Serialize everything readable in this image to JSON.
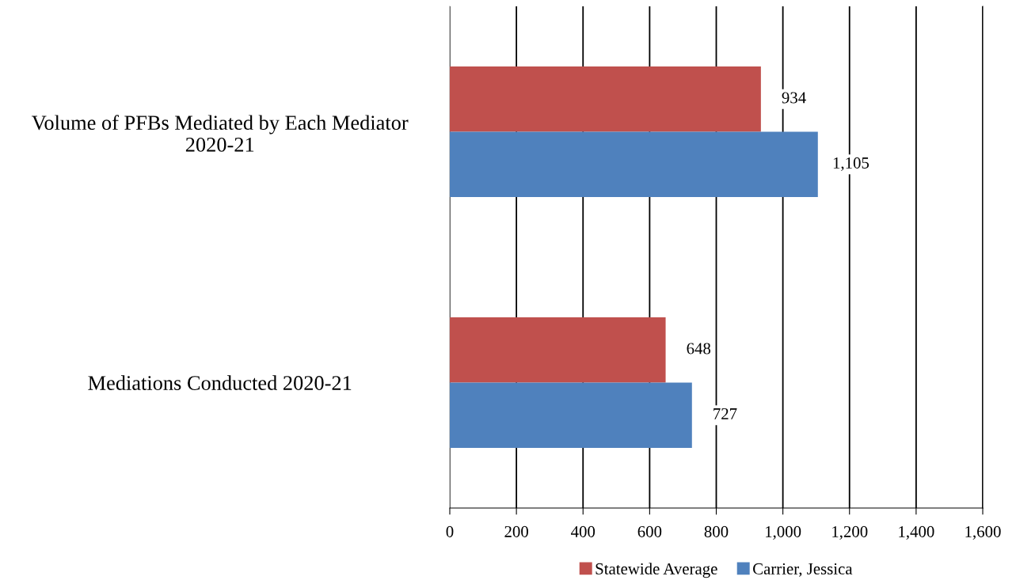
{
  "chart_data": {
    "type": "bar",
    "orientation": "horizontal",
    "categories": [
      "Volume of PFBs Mediated by Each Mediator\n2020-21",
      "Mediations Conducted 2020-21"
    ],
    "series": [
      {
        "name": "Statewide Average",
        "color": "#c0504d",
        "values": [
          934,
          648
        ],
        "value_labels": [
          "934",
          "648"
        ]
      },
      {
        "name": "Carrier, Jessica",
        "color": "#4f81bd",
        "values": [
          1105,
          727
        ],
        "value_labels": [
          "1,105",
          "727"
        ]
      }
    ],
    "xlim": [
      0,
      1600
    ],
    "xticks": [
      0,
      {
        "value": 200,
        "label": "200"
      },
      {
        "value": 400,
        "label": "400"
      },
      {
        "value": 600,
        "label": "600"
      },
      {
        "value": 800,
        "label": "800"
      },
      {
        "value": 1000,
        "label": "1,000"
      },
      {
        "value": 1200,
        "label": "1,200"
      },
      {
        "value": 1400,
        "label": "1,400"
      },
      {
        "value": 1600,
        "label": "1,600"
      }
    ],
    "grid": "x",
    "legend": "bottom"
  }
}
